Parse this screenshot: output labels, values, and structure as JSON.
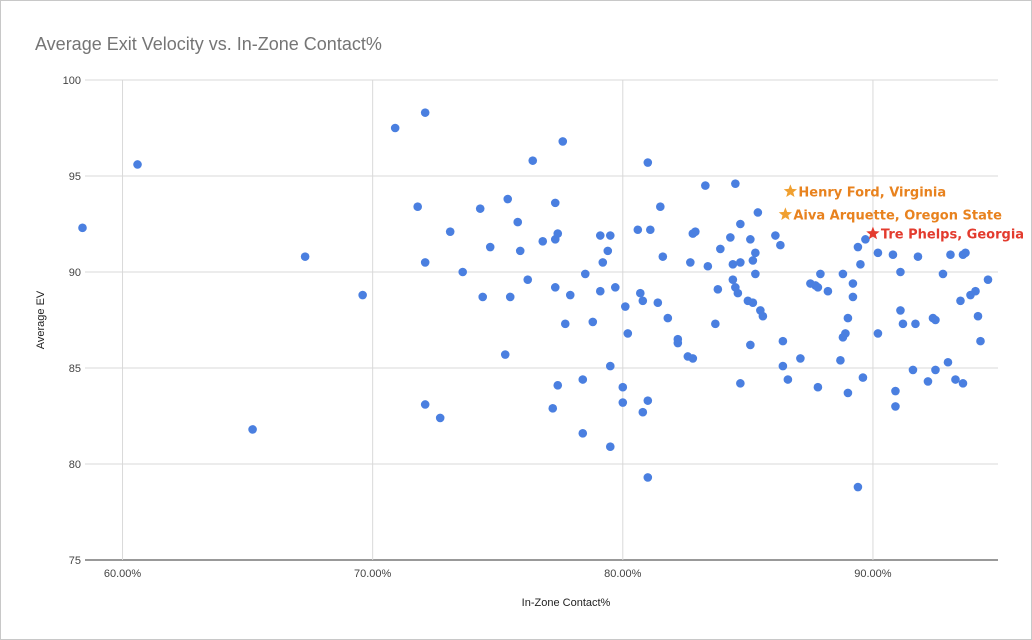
{
  "chart_data": {
    "type": "scatter",
    "title": "Average Exit Velocity vs. In-Zone Contact%",
    "xlabel": "In-Zone Contact%",
    "ylabel": "Average EV",
    "xlim": [
      0.585,
      0.95
    ],
    "ylim": [
      75,
      100
    ],
    "x_ticks": [
      0.6,
      0.7,
      0.8,
      0.9
    ],
    "x_tick_labels": [
      "60.00%",
      "70.00%",
      "80.00%",
      "90.00%"
    ],
    "y_ticks": [
      75,
      80,
      85,
      90,
      95,
      100
    ],
    "y_tick_labels": [
      "75",
      "80",
      "85",
      "90",
      "95",
      "100"
    ],
    "grid": true,
    "point_color": "#4a7fe0",
    "points": [
      [
        0.584,
        92.3
      ],
      [
        0.606,
        95.6
      ],
      [
        0.652,
        81.8
      ],
      [
        0.673,
        90.8
      ],
      [
        0.696,
        88.8
      ],
      [
        0.709,
        97.5
      ],
      [
        0.718,
        93.4
      ],
      [
        0.721,
        98.3
      ],
      [
        0.721,
        90.5
      ],
      [
        0.721,
        83.1
      ],
      [
        0.727,
        82.4
      ],
      [
        0.731,
        92.1
      ],
      [
        0.736,
        90.0
      ],
      [
        0.743,
        93.3
      ],
      [
        0.744,
        88.7
      ],
      [
        0.747,
        91.3
      ],
      [
        0.753,
        85.7
      ],
      [
        0.754,
        93.8
      ],
      [
        0.755,
        88.7
      ],
      [
        0.758,
        92.6
      ],
      [
        0.759,
        91.1
      ],
      [
        0.762,
        89.6
      ],
      [
        0.764,
        95.8
      ],
      [
        0.768,
        91.6
      ],
      [
        0.773,
        93.6
      ],
      [
        0.773,
        91.7
      ],
      [
        0.774,
        92.0
      ],
      [
        0.773,
        89.2
      ],
      [
        0.772,
        82.9
      ],
      [
        0.774,
        84.1
      ],
      [
        0.776,
        96.8
      ],
      [
        0.777,
        87.3
      ],
      [
        0.779,
        88.8
      ],
      [
        0.784,
        84.4
      ],
      [
        0.784,
        81.6
      ],
      [
        0.785,
        89.9
      ],
      [
        0.788,
        87.4
      ],
      [
        0.791,
        91.9
      ],
      [
        0.791,
        89.0
      ],
      [
        0.792,
        90.5
      ],
      [
        0.794,
        91.1
      ],
      [
        0.795,
        91.9
      ],
      [
        0.795,
        85.1
      ],
      [
        0.795,
        80.9
      ],
      [
        0.797,
        89.2
      ],
      [
        0.8,
        84.0
      ],
      [
        0.8,
        83.2
      ],
      [
        0.801,
        88.2
      ],
      [
        0.802,
        86.8
      ],
      [
        0.806,
        92.2
      ],
      [
        0.807,
        88.9
      ],
      [
        0.808,
        88.5
      ],
      [
        0.808,
        82.7
      ],
      [
        0.81,
        83.3
      ],
      [
        0.81,
        79.3
      ],
      [
        0.81,
        95.7
      ],
      [
        0.811,
        92.2
      ],
      [
        0.814,
        88.4
      ],
      [
        0.815,
        93.4
      ],
      [
        0.816,
        90.8
      ],
      [
        0.818,
        87.6
      ],
      [
        0.822,
        86.5
      ],
      [
        0.822,
        86.3
      ],
      [
        0.826,
        85.6
      ],
      [
        0.827,
        90.5
      ],
      [
        0.828,
        92.0
      ],
      [
        0.829,
        92.1
      ],
      [
        0.828,
        85.5
      ],
      [
        0.833,
        94.5
      ],
      [
        0.834,
        90.3
      ],
      [
        0.837,
        87.3
      ],
      [
        0.838,
        89.1
      ],
      [
        0.839,
        91.2
      ],
      [
        0.843,
        91.8
      ],
      [
        0.844,
        90.4
      ],
      [
        0.844,
        89.6
      ],
      [
        0.845,
        94.6
      ],
      [
        0.845,
        89.2
      ],
      [
        0.846,
        88.9
      ],
      [
        0.847,
        92.5
      ],
      [
        0.847,
        90.5
      ],
      [
        0.847,
        84.2
      ],
      [
        0.85,
        88.5
      ],
      [
        0.851,
        91.7
      ],
      [
        0.851,
        86.2
      ],
      [
        0.852,
        88.4
      ],
      [
        0.852,
        90.6
      ],
      [
        0.853,
        91.0
      ],
      [
        0.853,
        89.9
      ],
      [
        0.854,
        93.1
      ],
      [
        0.855,
        88.0
      ],
      [
        0.856,
        87.7
      ],
      [
        0.861,
        91.9
      ],
      [
        0.863,
        91.4
      ],
      [
        0.864,
        86.4
      ],
      [
        0.864,
        85.1
      ],
      [
        0.866,
        84.4
      ],
      [
        0.871,
        85.5
      ],
      [
        0.875,
        89.4
      ],
      [
        0.877,
        89.3
      ],
      [
        0.878,
        89.2
      ],
      [
        0.878,
        84.0
      ],
      [
        0.879,
        89.9
      ],
      [
        0.882,
        89.0
      ],
      [
        0.887,
        85.4
      ],
      [
        0.888,
        89.9
      ],
      [
        0.888,
        86.6
      ],
      [
        0.889,
        86.8
      ],
      [
        0.89,
        87.6
      ],
      [
        0.89,
        83.7
      ],
      [
        0.892,
        89.4
      ],
      [
        0.892,
        88.7
      ],
      [
        0.894,
        91.3
      ],
      [
        0.894,
        78.8
      ],
      [
        0.895,
        90.4
      ],
      [
        0.896,
        84.5
      ],
      [
        0.897,
        91.7
      ],
      [
        0.902,
        91.0
      ],
      [
        0.902,
        86.8
      ],
      [
        0.908,
        90.9
      ],
      [
        0.909,
        83.8
      ],
      [
        0.909,
        83.0
      ],
      [
        0.911,
        88.0
      ],
      [
        0.911,
        90.0
      ],
      [
        0.912,
        87.3
      ],
      [
        0.916,
        84.9
      ],
      [
        0.917,
        87.3
      ],
      [
        0.918,
        90.8
      ],
      [
        0.922,
        84.3
      ],
      [
        0.924,
        87.6
      ],
      [
        0.925,
        87.5
      ],
      [
        0.925,
        84.9
      ],
      [
        0.928,
        89.9
      ],
      [
        0.93,
        85.3
      ],
      [
        0.931,
        90.9
      ],
      [
        0.933,
        84.4
      ],
      [
        0.935,
        88.5
      ],
      [
        0.936,
        84.2
      ],
      [
        0.936,
        90.9
      ],
      [
        0.937,
        91.0
      ],
      [
        0.939,
        88.8
      ],
      [
        0.941,
        89.0
      ],
      [
        0.942,
        87.7
      ],
      [
        0.943,
        86.4
      ],
      [
        0.946,
        89.6
      ]
    ],
    "annotations": [
      {
        "label": "Henry Ford, Virginia",
        "x": 0.867,
        "y": 94.2,
        "color": "#f0a030",
        "text_color": "#e8821e"
      },
      {
        "label": "Aiva Arquette, Oregon State",
        "x": 0.865,
        "y": 93.0,
        "color": "#f0a030",
        "text_color": "#e8821e"
      },
      {
        "label": "Tre Phelps, Georgia",
        "x": 0.9,
        "y": 92.0,
        "color": "#e33b2e",
        "text_color": "#e33b2e"
      }
    ]
  }
}
